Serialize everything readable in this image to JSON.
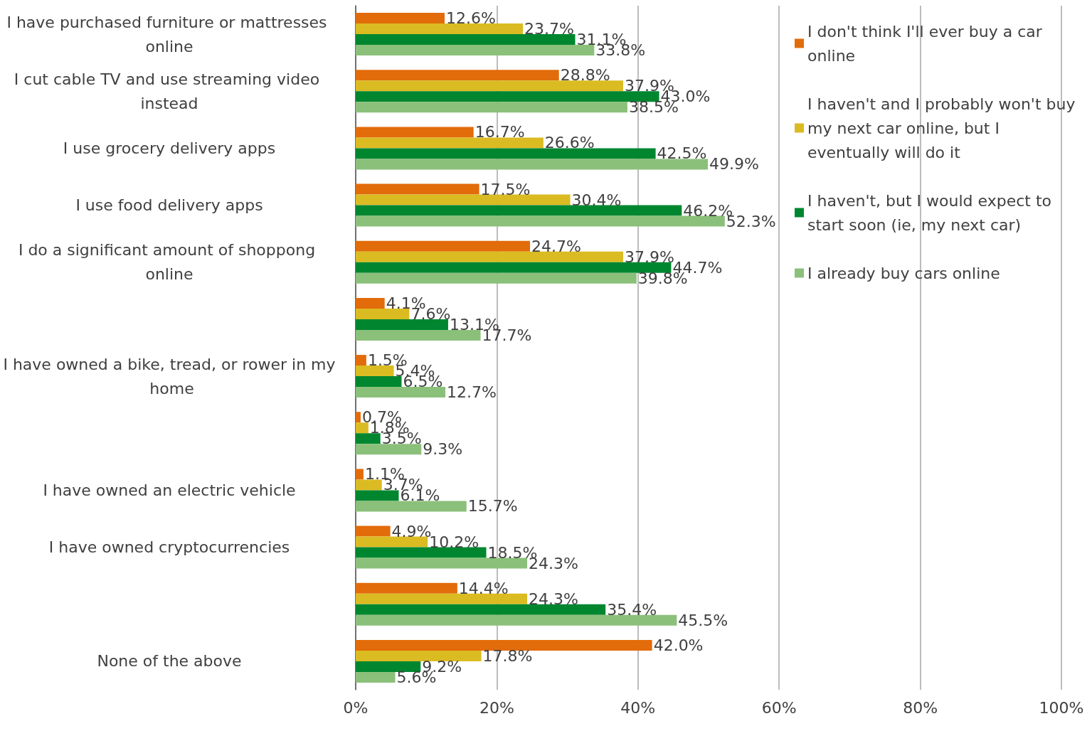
{
  "chart_data": {
    "type": "bar",
    "orientation": "horizontal",
    "categories": [
      "I have purchased furniture or mattresses online",
      "I cut cable TV and use streaming video instead",
      "I use grocery delivery apps",
      "I use food delivery apps",
      "I do a significant amount of shoppong online",
      null,
      "I have owned a bike, tread, or rower in my home",
      null,
      "I have owned an electric vehicle",
      "I have owned cryptocurrencies",
      null,
      "None of the above"
    ],
    "series": [
      {
        "name": "I don't think I'll ever buy a car online",
        "color": "#e26b0a",
        "values": [
          12.6,
          28.8,
          16.7,
          17.5,
          24.7,
          4.1,
          1.5,
          0.7,
          1.1,
          4.9,
          14.4,
          42.0
        ],
        "value_labels": [
          "12.6%",
          "28.8%",
          "16.7%",
          "17.5%",
          "24.7%",
          "4.1%",
          "1.5%",
          "0.7%",
          "1.1%",
          "4.9%",
          "14.4%",
          "42.0%"
        ]
      },
      {
        "name": "I haven't and I probably won't buy my next car online, but I eventually will do it",
        "color": "#dbbb22",
        "values": [
          23.7,
          37.9,
          26.6,
          30.4,
          37.9,
          7.6,
          5.4,
          1.8,
          3.7,
          10.2,
          24.3,
          17.8
        ],
        "value_labels": [
          "23.7%",
          "37.9%",
          "26.6%",
          "30.4%",
          "37.9%",
          "7.6%",
          "5.4%",
          "1.8%",
          "3.7%",
          "10.2%",
          "24.3%",
          "17.8%"
        ]
      },
      {
        "name": "I haven't, but I would expect to start soon (ie, my next car)",
        "color": "#00862f",
        "values": [
          31.1,
          43.0,
          42.5,
          46.2,
          44.7,
          13.1,
          6.5,
          3.5,
          6.1,
          18.5,
          35.4,
          9.2
        ],
        "value_labels": [
          "31.1%",
          "43.0%",
          "42.5%",
          "46.2%",
          "44.7%",
          "13.1%",
          "6.5%",
          "3.5%",
          "6.1%",
          "18.5%",
          "35.4%",
          "9.2%"
        ]
      },
      {
        "name": "I already buy cars online",
        "color": "#8bc07a",
        "values": [
          33.8,
          38.5,
          49.9,
          52.3,
          39.8,
          17.7,
          12.7,
          9.3,
          15.7,
          24.3,
          45.5,
          5.6
        ],
        "value_labels": [
          "33.8%",
          "38.5%",
          "49.9%",
          "52.3%",
          "39.8%",
          "17.7%",
          "12.7%",
          "9.3%",
          "15.7%",
          "24.3%",
          "45.5%",
          "5.6%"
        ]
      }
    ],
    "xlim": [
      0,
      100
    ],
    "xticks": [
      {
        "value": 0,
        "label": "0%"
      },
      {
        "value": 20,
        "label": "20%"
      },
      {
        "value": 40,
        "label": "40%"
      },
      {
        "value": 60,
        "label": "60%"
      },
      {
        "value": 80,
        "label": "80%"
      },
      {
        "value": 100,
        "label": "100%"
      }
    ],
    "grid": "x",
    "legend": "top right"
  }
}
